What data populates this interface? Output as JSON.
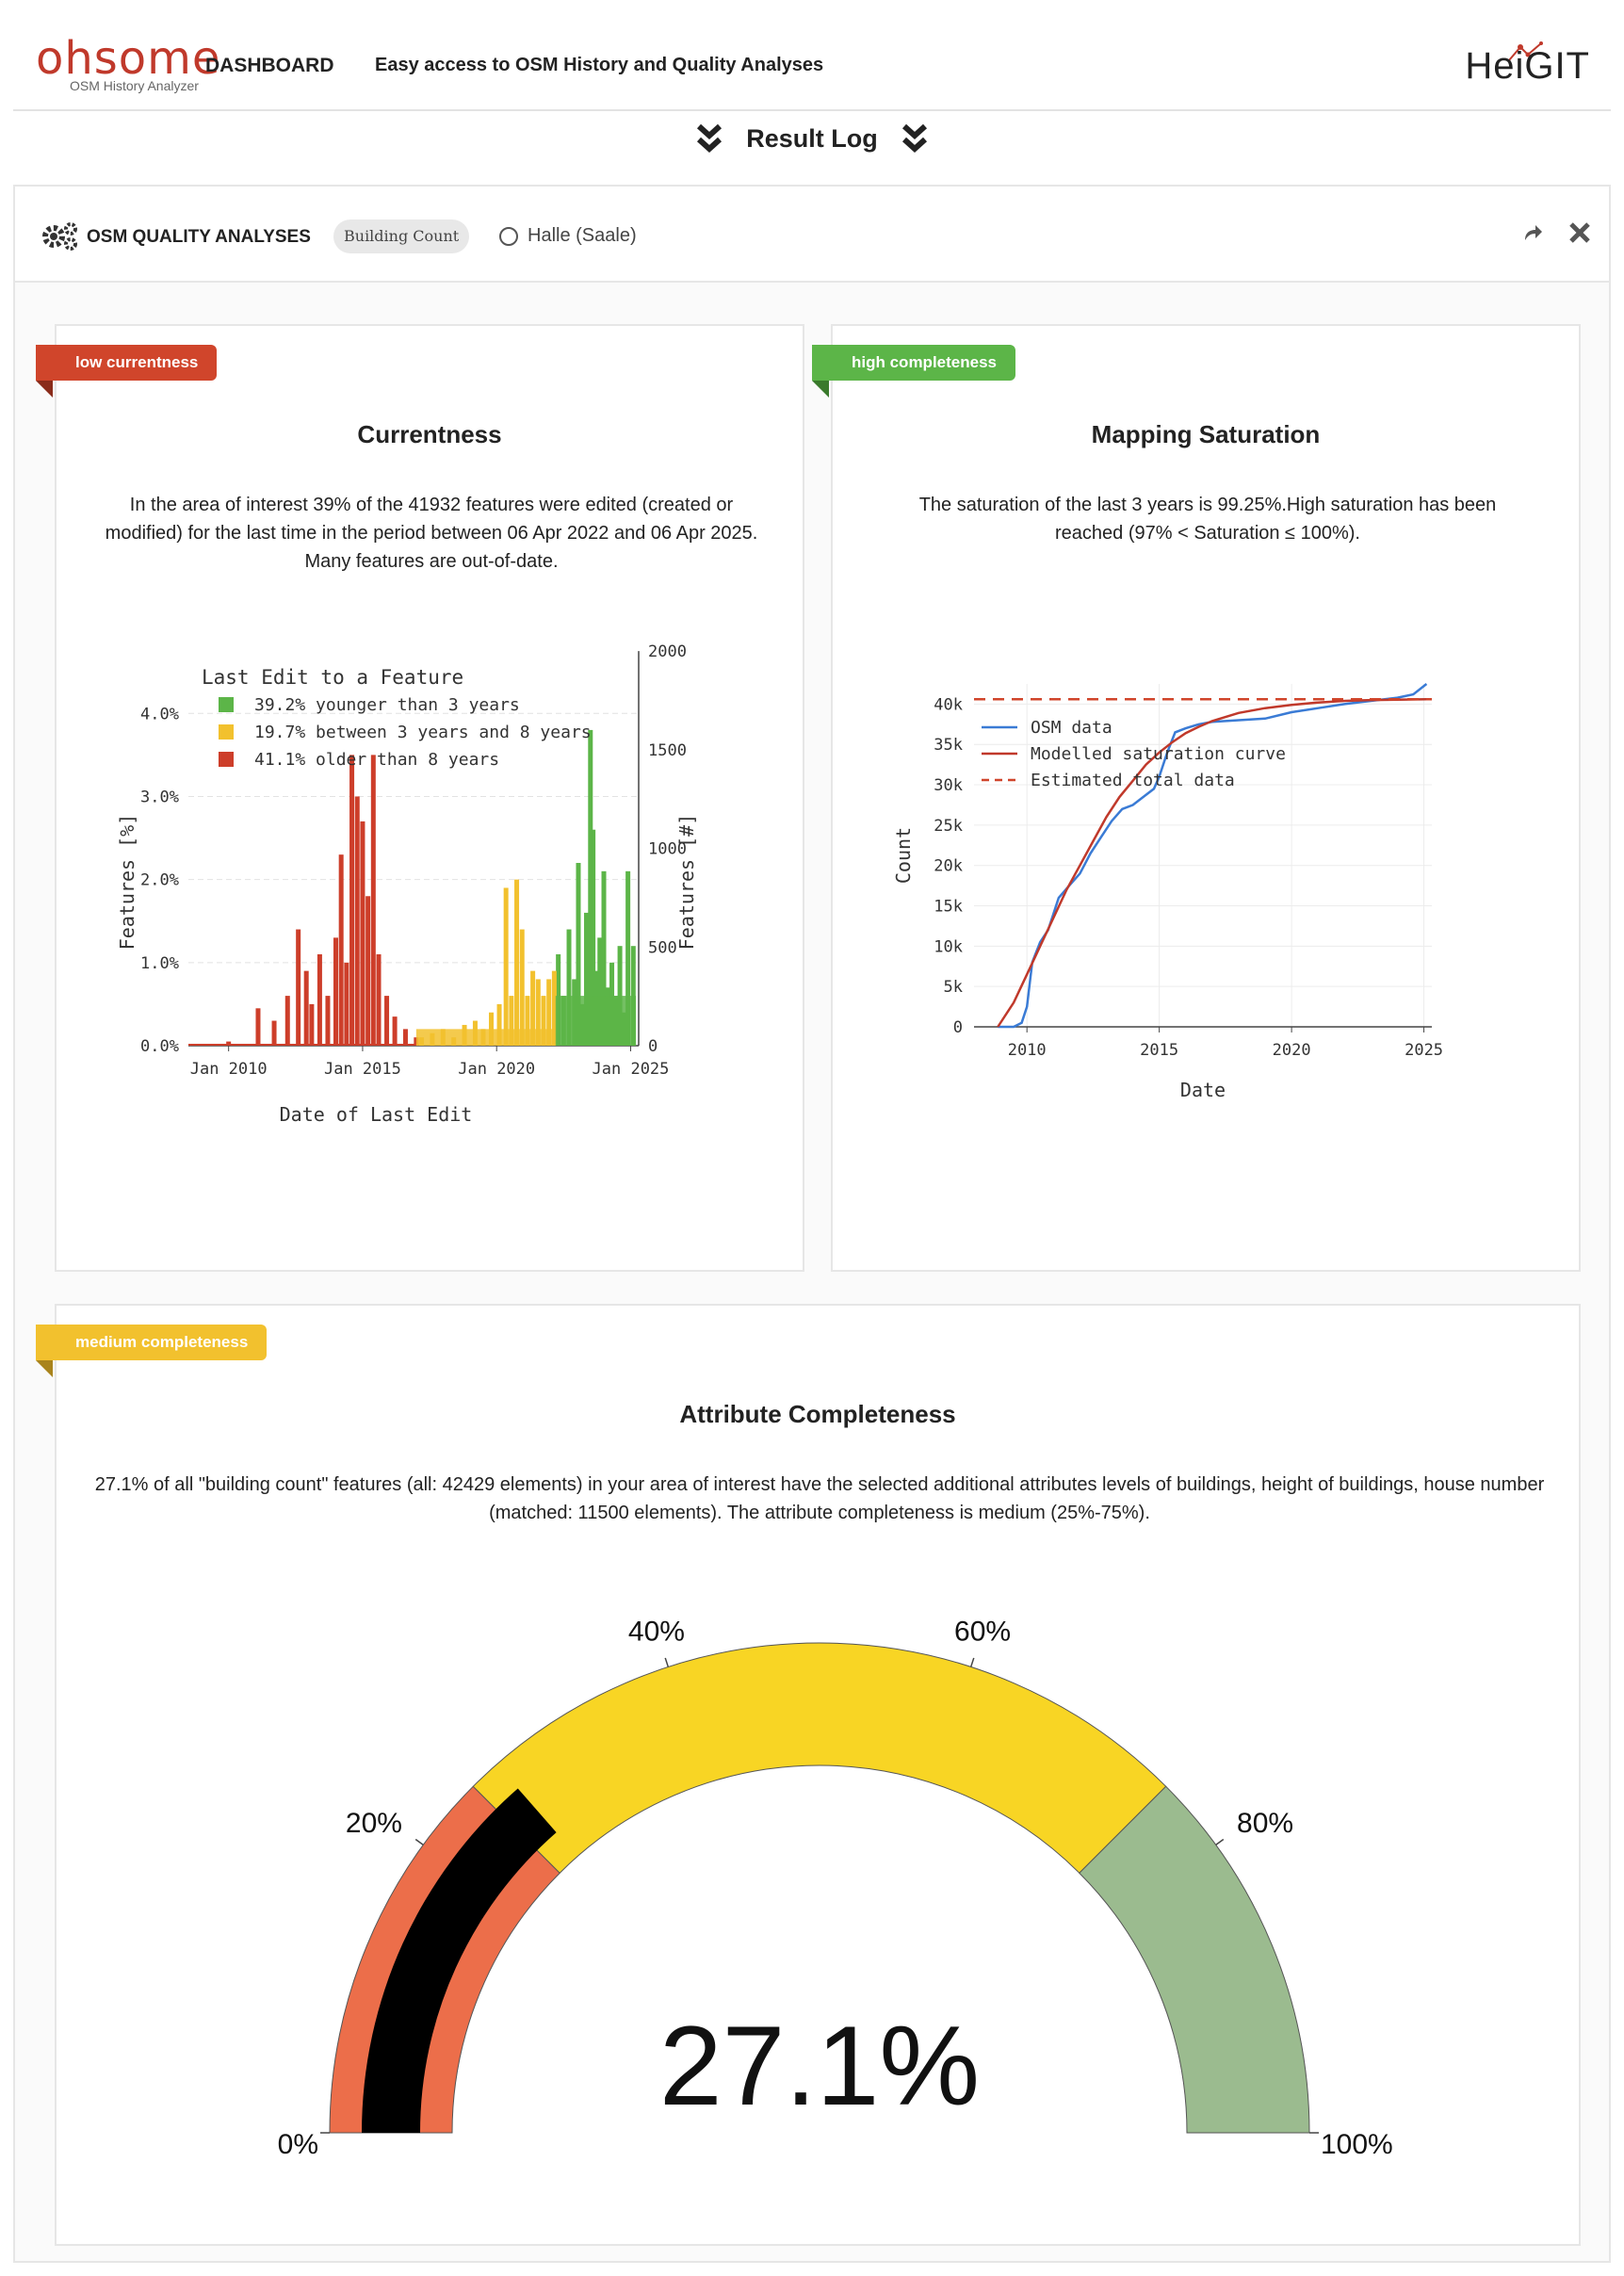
{
  "header": {
    "logo": "ohsome",
    "logo_sub": "OSM History Analyzer",
    "dashboard": "DASHBOARD",
    "tagline": "Easy access to OSM History and Quality Analyses",
    "brand": "HeiGIT"
  },
  "result_log": "Result Log",
  "panel": {
    "title": "OSM QUALITY ANALYSES",
    "pill": "Building Count",
    "region": "Halle (Saale)"
  },
  "currentness": {
    "badge": "low currentness",
    "badge_color": "#d0452b",
    "title": "Currentness",
    "desc": "In the area of interest 39% of the 41932 features were edited (created or modified) for the last time in the period between 06 Apr 2022 and 06 Apr 2025. Many features are out-of-date.",
    "chart_data": {
      "type": "bar",
      "x_label": "Date of Last Edit",
      "y_label_left": "Features [%]",
      "y_label_right": "Features [#]",
      "x_ticks": [
        "Jan 2010",
        "Jan 2015",
        "Jan 2020",
        "Jan 2025"
      ],
      "y_ticks_left": [
        "0.0%",
        "1.0%",
        "2.0%",
        "3.0%",
        "4.0%"
      ],
      "y_ticks_right": [
        "0",
        "500",
        "1000",
        "1500",
        "2000"
      ],
      "xlim": [
        2008.5,
        2025.3
      ],
      "ylim_percent": [
        0,
        4.4
      ],
      "legend_title": "Last Edit to a Feature",
      "series": [
        {
          "name": "39.2% younger than 3 years",
          "color": "#5cb548",
          "x": [
            2022.3,
            2022.5,
            2022.7,
            2022.9,
            2023.05,
            2023.2,
            2023.35,
            2023.5,
            2023.6,
            2023.7,
            2023.85,
            2024.0,
            2024.15,
            2024.3,
            2024.45,
            2024.6,
            2024.75,
            2024.9,
            2025.1
          ],
          "values": [
            1.1,
            0.6,
            1.4,
            0.8,
            2.2,
            0.5,
            1.6,
            3.8,
            2.6,
            0.9,
            1.3,
            2.1,
            0.7,
            1.0,
            0.6,
            1.2,
            0.4,
            2.1,
            1.2
          ]
        },
        {
          "name": "19.7% between 3 years and 8 years",
          "color": "#f2c12e",
          "x": [
            2017.2,
            2017.6,
            2018.0,
            2018.4,
            2018.8,
            2019.2,
            2019.5,
            2019.8,
            2020.1,
            2020.35,
            2020.55,
            2020.75,
            2020.95,
            2021.15,
            2021.35,
            2021.55,
            2021.75,
            2021.95,
            2022.15
          ],
          "values": [
            0.1,
            0.15,
            0.2,
            0.1,
            0.25,
            0.3,
            0.2,
            0.4,
            0.5,
            1.9,
            0.6,
            2.0,
            1.4,
            0.6,
            0.9,
            0.8,
            0.6,
            0.8,
            0.9
          ]
        },
        {
          "name": "41.1% older than 8 years",
          "color": "#cd3e2a",
          "x": [
            2010.0,
            2011.1,
            2011.7,
            2012.2,
            2012.6,
            2012.9,
            2013.1,
            2013.4,
            2013.7,
            2014.0,
            2014.2,
            2014.4,
            2014.6,
            2014.8,
            2015.0,
            2015.2,
            2015.4,
            2015.6,
            2015.9,
            2016.2,
            2016.6,
            2017.0
          ],
          "values": [
            0.05,
            0.45,
            0.3,
            0.6,
            1.4,
            0.9,
            0.5,
            1.1,
            0.6,
            1.3,
            2.3,
            1.0,
            3.5,
            3.0,
            2.7,
            1.8,
            3.5,
            1.1,
            0.6,
            0.35,
            0.2,
            0.1
          ]
        }
      ]
    }
  },
  "saturation": {
    "badge": "high completeness",
    "badge_color": "#5cb548",
    "title": "Mapping Saturation",
    "desc": "The saturation of the last 3 years is 99.25%.High saturation has been reached (97% < Saturation ≤ 100%).",
    "chart_data": {
      "type": "line",
      "x_label": "Date",
      "y_label": "Count",
      "x_ticks": [
        "2010",
        "2015",
        "2020",
        "2025"
      ],
      "y_ticks": [
        "0",
        "5k",
        "10k",
        "15k",
        "20k",
        "25k",
        "30k",
        "35k",
        "40k"
      ],
      "xlim": [
        2008.0,
        2025.3
      ],
      "ylim": [
        0,
        42500
      ],
      "series": [
        {
          "name": "OSM data",
          "color": "#3a7bd5",
          "dash": false,
          "x": [
            2008.9,
            2009.5,
            2009.8,
            2010.0,
            2010.2,
            2010.5,
            2010.8,
            2011.2,
            2011.6,
            2012.0,
            2012.4,
            2012.8,
            2013.2,
            2013.6,
            2014.0,
            2014.4,
            2014.8,
            2015.0,
            2015.3,
            2015.6,
            2016.0,
            2016.5,
            2017.0,
            2018.0,
            2019.0,
            2020.0,
            2021.0,
            2022.0,
            2023.0,
            2024.0,
            2024.6,
            2025.1
          ],
          "y": [
            0,
            0,
            500,
            2500,
            8000,
            10500,
            12000,
            16000,
            17500,
            19000,
            21500,
            23500,
            25500,
            27000,
            27500,
            28500,
            29500,
            31000,
            34000,
            36500,
            37000,
            37500,
            37800,
            38000,
            38200,
            39000,
            39500,
            40000,
            40400,
            40800,
            41200,
            42500
          ]
        },
        {
          "name": "Modelled saturation curve",
          "color": "#c0392b",
          "dash": false,
          "x": [
            2008.9,
            2009.5,
            2010.0,
            2010.5,
            2011.0,
            2011.5,
            2012.0,
            2012.5,
            2013.0,
            2013.5,
            2014.0,
            2014.5,
            2015.0,
            2015.5,
            2016.0,
            2016.5,
            2017.0,
            2018.0,
            2019.0,
            2020.0,
            2021.0,
            2022.0,
            2023.0,
            2024.0,
            2025.1
          ],
          "y": [
            0,
            3000,
            6500,
            10000,
            13500,
            17000,
            20000,
            23000,
            26000,
            28500,
            30500,
            32500,
            34000,
            35300,
            36400,
            37200,
            37900,
            38900,
            39500,
            39900,
            40200,
            40400,
            40500,
            40550,
            40600
          ]
        },
        {
          "name": "Estimated total data",
          "color": "#d0452b",
          "dash": true,
          "x": [
            2008.0,
            2025.3
          ],
          "y": [
            40600,
            40600
          ]
        }
      ]
    }
  },
  "attribute": {
    "badge": "medium completeness",
    "badge_color": "#f2c12e",
    "title": "Attribute Completeness",
    "desc": "27.1% of all \"building count\" features (all: 42429 elements) in your area of interest have the selected additional attributes levels of buildings, height of buildings, house number (matched: 11500 elements). The attribute completeness is medium (25%-75%).",
    "gauge": {
      "value_label": "27.1%",
      "value": 0.271,
      "ticks": [
        "0%",
        "20%",
        "40%",
        "60%",
        "80%",
        "100%"
      ],
      "bands": [
        {
          "from": 0,
          "to": 0.25,
          "color": "#ec6e4a"
        },
        {
          "from": 0.25,
          "to": 0.75,
          "color": "#f8d524"
        },
        {
          "from": 0.75,
          "to": 1.0,
          "color": "#9bbb8f"
        }
      ],
      "needle_color": "#000000"
    }
  }
}
